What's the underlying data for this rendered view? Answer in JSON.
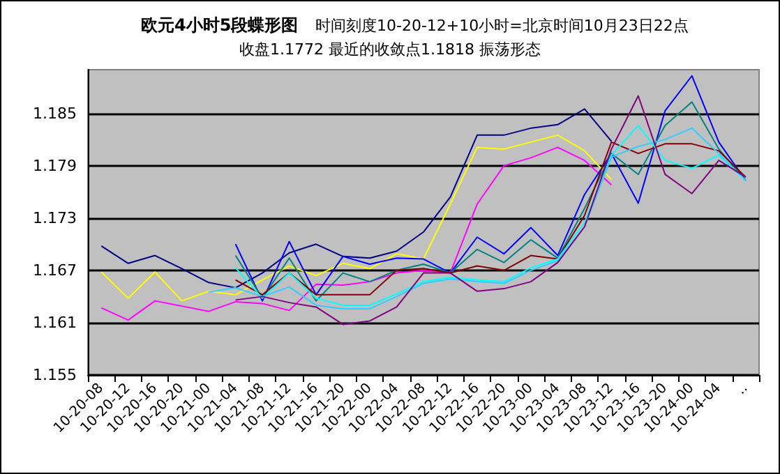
{
  "chart_data": {
    "type": "line",
    "title": "欧元4小时5段蝶形图",
    "subtitle": "时间刻度10-20-12+10小时=北京时间10月23日22点",
    "annotations": [
      "收盘1.1772 最近的收敛点1.1818 振荡形态"
    ],
    "categories": [
      "10-20-08",
      "10-20-12",
      "10-20-16",
      "10-20-20",
      "10-21-00",
      "10-21-04",
      "10-21-08",
      "10-21-12",
      "10-21-16",
      "10-21-20",
      "10-22-00",
      "10-22-04",
      "10-22-08",
      "10-22-12",
      "10-22-16",
      "10-22-20",
      "10-23-00",
      "10-23-04",
      "10-23-08",
      "10-23-12",
      "10-23-16",
      "10-23-20",
      "10-24-00",
      "10-24-04",
      ".."
    ],
    "series": [
      {
        "color": "#000080",
        "values": [
          1.1698,
          1.1678,
          1.1687,
          1.1672,
          1.1656,
          1.165,
          1.1667,
          1.169,
          1.17,
          1.1686,
          1.1684,
          1.1692,
          1.1714,
          1.1754,
          1.1825,
          1.1825,
          1.1833,
          1.1837,
          1.1855,
          1.1818,
          null,
          null,
          null,
          null,
          null
        ]
      },
      {
        "color": "#ffff00",
        "values": [
          1.1668,
          1.1638,
          1.1668,
          1.1635,
          1.1646,
          1.1642,
          1.1659,
          1.1675,
          1.1664,
          1.1678,
          1.1672,
          1.1689,
          1.1683,
          1.1746,
          1.1811,
          1.1809,
          1.1817,
          1.1825,
          1.1807,
          1.1774,
          null,
          null,
          null,
          null,
          null
        ]
      },
      {
        "color": "#ff00ff",
        "values": [
          1.1627,
          1.1613,
          1.1635,
          1.1629,
          1.1623,
          1.1634,
          1.1632,
          1.1624,
          1.1654,
          1.1653,
          1.1657,
          1.1667,
          1.167,
          1.1667,
          1.1746,
          1.179,
          1.1799,
          1.1811,
          1.1796,
          1.1768,
          null,
          null,
          null,
          null,
          null
        ]
      },
      {
        "color": "#0000ff",
        "values": [
          null,
          null,
          null,
          null,
          null,
          1.17,
          1.1635,
          1.1703,
          1.1642,
          1.1686,
          1.1677,
          1.1684,
          1.1683,
          1.1667,
          1.1708,
          1.1689,
          1.1719,
          1.1687,
          1.1757,
          1.1804,
          1.1747,
          1.1853,
          1.1893,
          1.1817,
          1.1773
        ]
      },
      {
        "color": "#008080",
        "values": [
          null,
          null,
          null,
          null,
          null,
          1.1687,
          1.1638,
          1.1684,
          1.1635,
          1.1667,
          1.1657,
          1.167,
          1.1677,
          1.1667,
          1.1694,
          1.1679,
          1.1705,
          1.1684,
          1.1741,
          1.1804,
          1.178,
          1.1836,
          1.1863,
          1.1809,
          1.1773
        ]
      },
      {
        "color": "#800000",
        "values": [
          null,
          null,
          null,
          null,
          null,
          1.1659,
          1.1642,
          1.1667,
          1.1642,
          1.1642,
          1.1642,
          1.167,
          1.1672,
          1.1667,
          1.1675,
          1.167,
          1.1687,
          1.1683,
          1.1733,
          1.1817,
          1.1804,
          1.1815,
          1.1815,
          1.1807,
          1.1777
        ]
      },
      {
        "color": "#00ffff",
        "values": [
          null,
          null,
          null,
          null,
          null,
          1.1673,
          1.1638,
          1.1667,
          1.1638,
          1.163,
          1.163,
          1.1643,
          1.1657,
          1.1662,
          1.1659,
          1.1657,
          1.1673,
          1.1683,
          1.1725,
          1.1802,
          1.1836,
          1.1796,
          1.1787,
          1.1802,
          1.1773
        ]
      },
      {
        "color": "#33ccff",
        "values": [
          null,
          null,
          null,
          null,
          1.1645,
          1.165,
          1.164,
          1.1651,
          1.163,
          1.1626,
          1.1626,
          1.164,
          1.1655,
          1.166,
          1.1657,
          1.1655,
          1.167,
          1.1681,
          1.172,
          1.18,
          1.1812,
          1.182,
          1.1833,
          1.1804,
          1.1773
        ]
      },
      {
        "color": "#800080",
        "values": [
          null,
          null,
          null,
          null,
          null,
          1.1636,
          1.164,
          1.1633,
          1.1628,
          1.1608,
          1.1612,
          1.1628,
          1.1667,
          1.1667,
          1.1646,
          1.1649,
          1.1657,
          1.1679,
          1.172,
          1.1809,
          1.187,
          1.178,
          1.1758,
          1.1796,
          1.1777
        ]
      }
    ],
    "ylim": [
      1.155,
      1.19
    ],
    "yticks": [
      1.155,
      1.161,
      1.167,
      1.173,
      1.179,
      1.185
    ],
    "grid": "y",
    "marker": "none",
    "line_style": "solid"
  }
}
